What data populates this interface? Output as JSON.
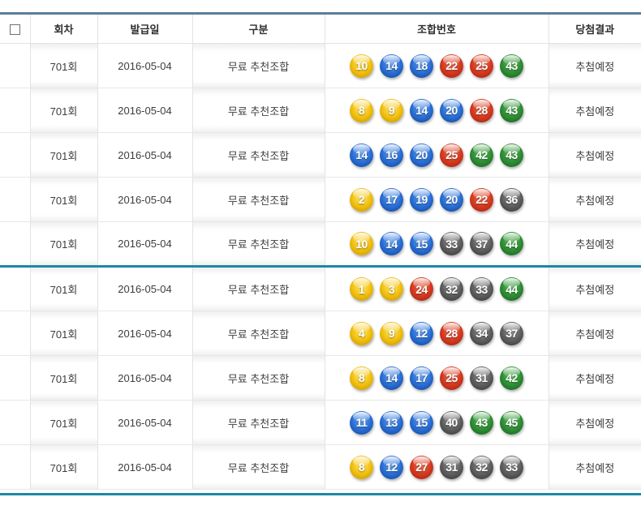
{
  "header": {
    "columns": [
      "회차",
      "발급일",
      "구분",
      "조합번호",
      "당첨결과"
    ]
  },
  "group_break_after": 5,
  "rows": [
    {
      "round": "701회",
      "date": "2016-05-04",
      "type": "무료 추천조합",
      "numbers": [
        10,
        14,
        18,
        22,
        25,
        43
      ],
      "result": "추첨예정"
    },
    {
      "round": "701회",
      "date": "2016-05-04",
      "type": "무료 추천조합",
      "numbers": [
        8,
        9,
        14,
        20,
        28,
        43
      ],
      "result": "추첨예정"
    },
    {
      "round": "701회",
      "date": "2016-05-04",
      "type": "무료 추천조합",
      "numbers": [
        14,
        16,
        20,
        25,
        42,
        43
      ],
      "result": "추첨예정"
    },
    {
      "round": "701회",
      "date": "2016-05-04",
      "type": "무료 추천조합",
      "numbers": [
        2,
        17,
        19,
        20,
        22,
        36
      ],
      "result": "추첨예정"
    },
    {
      "round": "701회",
      "date": "2016-05-04",
      "type": "무료 추천조합",
      "numbers": [
        10,
        14,
        15,
        33,
        37,
        44
      ],
      "result": "추첨예정"
    },
    {
      "round": "701회",
      "date": "2016-05-04",
      "type": "무료 추천조합",
      "numbers": [
        1,
        3,
        24,
        32,
        33,
        44
      ],
      "result": "추첨예정"
    },
    {
      "round": "701회",
      "date": "2016-05-04",
      "type": "무료 추천조합",
      "numbers": [
        4,
        9,
        12,
        28,
        34,
        37
      ],
      "result": "추첨예정"
    },
    {
      "round": "701회",
      "date": "2016-05-04",
      "type": "무료 추천조합",
      "numbers": [
        8,
        14,
        17,
        25,
        31,
        42
      ],
      "result": "추첨예정"
    },
    {
      "round": "701회",
      "date": "2016-05-04",
      "type": "무료 추천조합",
      "numbers": [
        11,
        13,
        15,
        40,
        43,
        45
      ],
      "result": "추첨예정"
    },
    {
      "round": "701회",
      "date": "2016-05-04",
      "type": "무료 추천조합",
      "numbers": [
        8,
        12,
        27,
        31,
        32,
        33
      ],
      "result": "추첨예정"
    }
  ],
  "colors": {
    "header_top_border": "#5c7e99",
    "group_divider": "#1e86a7",
    "cell_border": "#e2e2e2",
    "header_text": "#2f2f2f",
    "cell_text": "#3d3d3d"
  },
  "ball_palette": {
    "yellow": {
      "range": "1-10",
      "hi": "#ffe873",
      "base": "#f2c00e",
      "dark": "#bd8e00"
    },
    "blue": {
      "range": "11-20",
      "hi": "#6fa7ee",
      "base": "#2a6fd6",
      "dark": "#0d3f8f"
    },
    "red": {
      "range": "21-30",
      "hi": "#f07a5e",
      "base": "#d63a20",
      "dark": "#9c1c09"
    },
    "gray": {
      "range": "31-40",
      "hi": "#9a9a9a",
      "base": "#5f5f5f",
      "dark": "#2f2f2f"
    },
    "green": {
      "range": "41-45",
      "hi": "#6cc06c",
      "base": "#2e8f35",
      "dark": "#14591c"
    }
  }
}
